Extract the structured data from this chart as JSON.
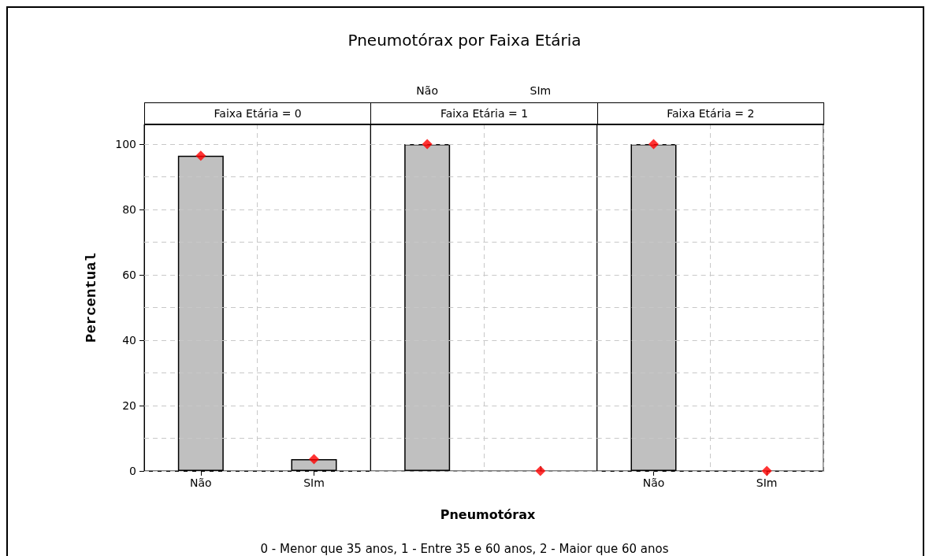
{
  "chart_data": [
    {
      "type": "bar",
      "subtitle": "Faixa Etária = 0",
      "ylabel": "Percentual",
      "categories": [
        "Não",
        "SIm"
      ],
      "series": [
        {
          "color": "#c0c0c0",
          "values": [
            96.4,
            3.6
          ]
        },
        {
          "type": "scatter",
          "color": "#ff0000",
          "x": [
            "Não",
            "SIm"
          ],
          "values": [
            96.4,
            3.6
          ]
        }
      ],
      "marker": "diamond",
      "ylim": [
        0,
        106
      ],
      "yticks": [
        0,
        {
          "value": 10,
          "label": null
        },
        20,
        {
          "value": 30,
          "label": null
        },
        40,
        {
          "value": 50,
          "label": null
        },
        60,
        {
          "value": 70,
          "label": null
        },
        80,
        {
          "value": 90,
          "label": null
        },
        100
      ],
      "grid": true
    },
    {
      "type": "bar",
      "title": "Pneumotórax por Faixa Etária",
      "subtitle": "Faixa Etária = 1",
      "xlabel": "Pneumotórax",
      "annotations": [
        "0 - Menor que 35 anos, 1 - Entre 35 e 60 anos, 2 - Maior que 60 anos"
      ],
      "categories": [
        "Não",
        "SIm"
      ],
      "series": [
        {
          "color": "#c0c0c0",
          "values": [
            100,
            0
          ]
        },
        {
          "type": "scatter",
          "color": "#ff0000",
          "x": [
            "Não",
            "SIm"
          ],
          "values": [
            100,
            0
          ]
        }
      ],
      "marker": "diamond",
      "ylim": [
        0,
        106
      ],
      "yticks": [
        0,
        {
          "value": 10,
          "label": null
        },
        20,
        {
          "value": 30,
          "label": null
        },
        40,
        {
          "value": 50,
          "label": null
        },
        60,
        {
          "value": 70,
          "label": null
        },
        80,
        {
          "value": 90,
          "label": null
        },
        100
      ],
      "grid": true,
      "tick_labels": "x"
    },
    {
      "type": "bar",
      "subtitle": "Faixa Etária = 2",
      "categories": [
        "Não",
        "SIm"
      ],
      "series": [
        {
          "color": "#c0c0c0",
          "values": [
            100,
            0
          ]
        },
        {
          "type": "scatter",
          "color": "#ff0000",
          "x": [
            "Não",
            "SIm"
          ],
          "values": [
            100,
            0
          ]
        }
      ],
      "marker": "diamond",
      "ylim": [
        0,
        106
      ],
      "yticks": [
        0,
        {
          "value": 10,
          "label": null
        },
        20,
        {
          "value": 30,
          "label": null
        },
        40,
        {
          "value": 50,
          "label": null
        },
        60,
        {
          "value": 70,
          "label": null
        },
        80,
        {
          "value": 90,
          "label": null
        },
        100
      ],
      "grid": true,
      "tick_labels": "x"
    }
  ]
}
